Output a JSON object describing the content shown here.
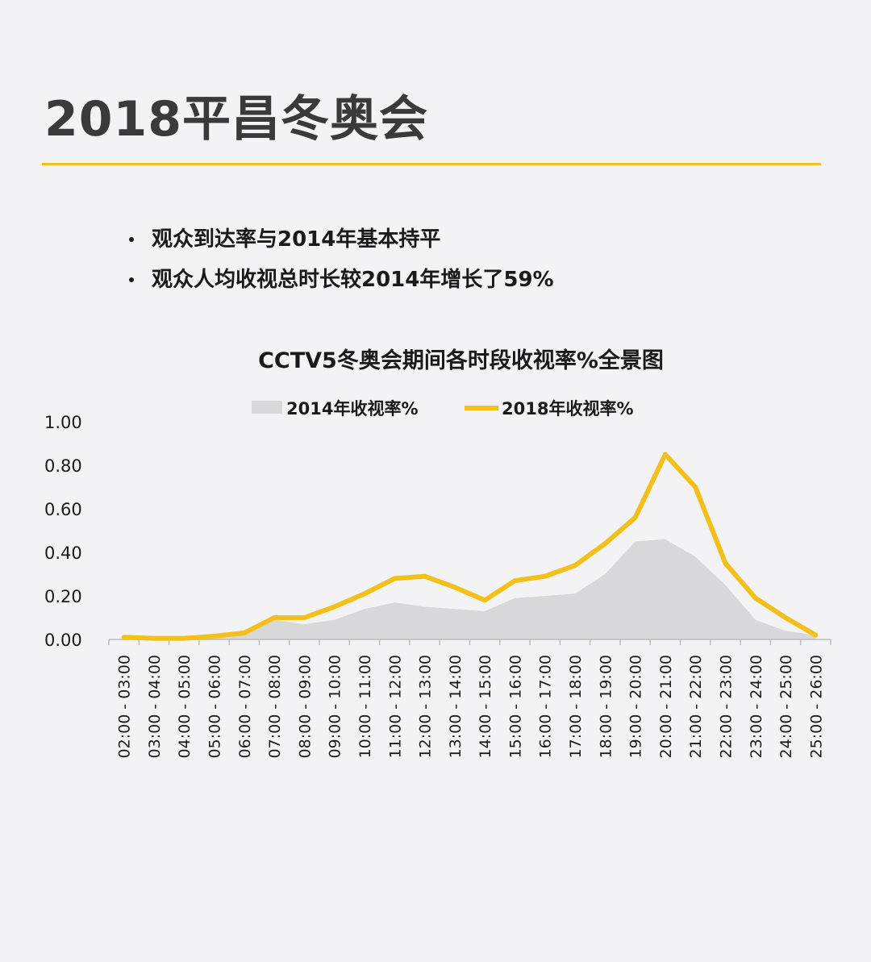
{
  "header": {
    "title": "2018平昌冬奥会"
  },
  "bullets": [
    "观众到达率与2014年基本持平",
    "观众人均收视总时长较2014年增长了59%"
  ],
  "colors": {
    "accent": "#f3c01b",
    "area": "#d8d8da",
    "axis": "#bdbdbd"
  },
  "chart_data": {
    "type": "line",
    "title": "CCTV5冬奥会期间各时段收视率%全景图",
    "xlabel": "",
    "ylabel": "",
    "ylim": [
      0,
      1.0
    ],
    "yticks": [
      "1.00",
      "0.80",
      "0.60",
      "0.40",
      "0.20",
      "0.00"
    ],
    "ytick_values": [
      1.0,
      0.8,
      0.6,
      0.4,
      0.2,
      0.0
    ],
    "legend_position": "top",
    "grid": false,
    "categories": [
      "02:00 - 03:00",
      "03:00 - 04:00",
      "04:00 - 05:00",
      "05:00 - 06:00",
      "06:00 - 07:00",
      "07:00 - 08:00",
      "08:00 - 09:00",
      "09:00 - 10:00",
      "10:00 - 11:00",
      "11:00 - 12:00",
      "12:00 - 13:00",
      "13:00 - 14:00",
      "14:00 - 15:00",
      "15:00 - 16:00",
      "16:00 - 17:00",
      "17:00 - 18:00",
      "18:00 - 19:00",
      "19:00 - 20:00",
      "20:00 - 21:00",
      "21:00 - 22:00",
      "22:00 - 23:00",
      "23:00 - 24:00",
      "24:00 - 25:00",
      "25:00 - 26:00"
    ],
    "series": [
      {
        "name": "2014年收视率%",
        "type": "area",
        "color": "#d8d8da",
        "values": [
          0.01,
          0.005,
          0.005,
          0.01,
          0.02,
          0.09,
          0.07,
          0.09,
          0.14,
          0.17,
          0.15,
          0.14,
          0.13,
          0.19,
          0.2,
          0.21,
          0.3,
          0.45,
          0.46,
          0.38,
          0.25,
          0.09,
          0.04,
          0.02
        ]
      },
      {
        "name": "2018年收视率%",
        "type": "line",
        "color": "#f3c01b",
        "values": [
          0.01,
          0.005,
          0.005,
          0.015,
          0.03,
          0.1,
          0.1,
          0.15,
          0.21,
          0.28,
          0.29,
          0.24,
          0.18,
          0.27,
          0.29,
          0.34,
          0.44,
          0.56,
          0.85,
          0.7,
          0.35,
          0.19,
          0.1,
          0.02
        ]
      }
    ]
  }
}
